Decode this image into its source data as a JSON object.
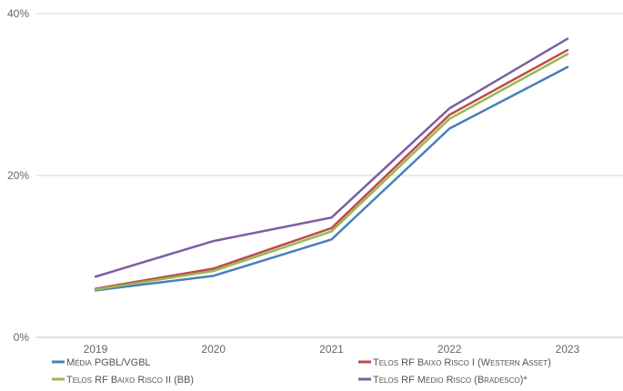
{
  "chart_data": {
    "type": "line",
    "categories": [
      "2019",
      "2020",
      "2021",
      "2022",
      "2023"
    ],
    "y_ticks": [
      "0%",
      "20%",
      "40%"
    ],
    "ylim": [
      0,
      40
    ],
    "grid": true,
    "legend_position": "bottom",
    "series": [
      {
        "name": "Média PGBL/VGBL",
        "color": "#4a7ebb",
        "values": [
          5.8,
          7.6,
          12.1,
          25.8,
          33.4
        ]
      },
      {
        "name": "Telos RF Baixo Risco I (Western Asset)",
        "color": "#be4b48",
        "values": [
          6.0,
          8.5,
          13.5,
          27.5,
          35.5
        ]
      },
      {
        "name": "Telos RF Baixo Risco II (BB)",
        "color": "#98b954",
        "values": [
          5.9,
          8.2,
          13.1,
          27.0,
          35.0
        ]
      },
      {
        "name": "Telos RF Médio Risco (Bradesco)*",
        "color": "#7d5fa0",
        "values": [
          7.5,
          11.9,
          14.8,
          28.3,
          36.9
        ]
      }
    ]
  }
}
